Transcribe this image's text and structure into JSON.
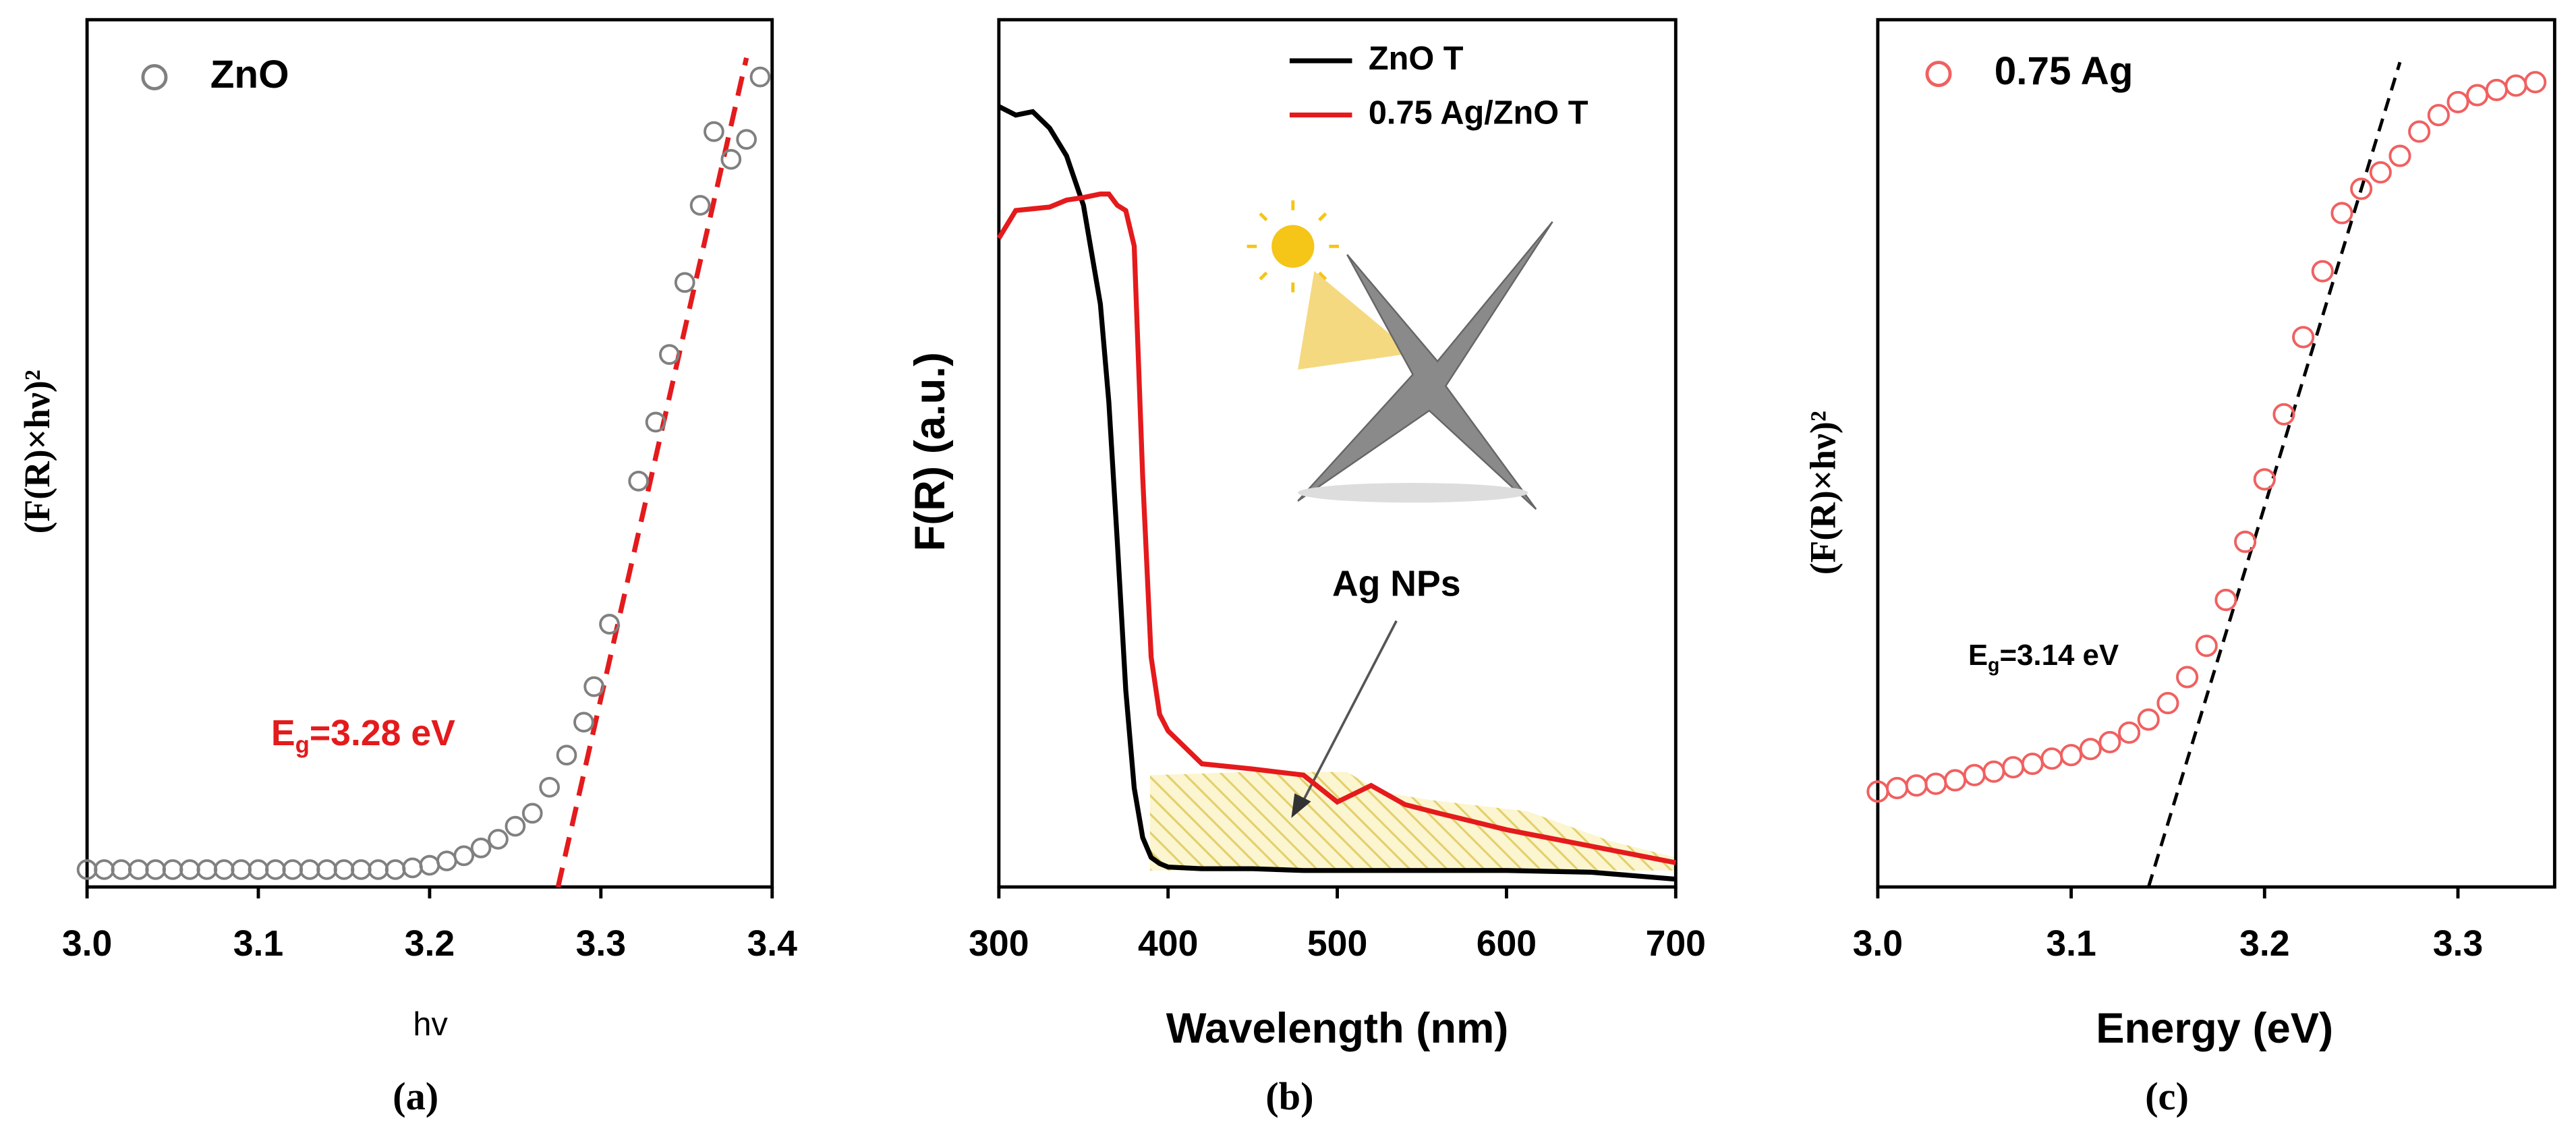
{
  "chart_data": [
    {
      "type": "scatter",
      "panel_label": "(a)",
      "x_label": "hv",
      "y_label": "(F(R)×hν)²",
      "legend": "upper left",
      "xlim": [
        3.0,
        3.4
      ],
      "xticks": [
        {
          "value": 3.0,
          "label": "3.0"
        },
        3.1,
        3.2,
        3.3,
        3.4
      ],
      "ylim": [
        0,
        1
      ],
      "series": [
        {
          "name": "ZnO",
          "color": "#808080",
          "x": [
            3.0,
            3.01,
            3.02,
            3.03,
            3.04,
            3.05,
            3.06,
            3.07,
            3.08,
            3.09,
            3.1,
            3.11,
            3.12,
            3.13,
            3.14,
            3.15,
            3.16,
            3.17,
            3.18,
            3.19,
            3.2,
            3.21,
            3.22,
            3.23,
            3.24,
            3.25,
            3.26,
            3.27,
            3.28,
            3.29,
            3.296,
            3.305,
            3.322,
            3.332,
            3.34,
            3.349,
            3.358,
            3.366,
            3.376,
            3.385,
            3.393
          ],
          "values": [
            0.02,
            0.02,
            0.02,
            0.02,
            0.02,
            0.02,
            0.02,
            0.02,
            0.02,
            0.02,
            0.02,
            0.02,
            0.02,
            0.02,
            0.02,
            0.02,
            0.02,
            0.02,
            0.02,
            0.022,
            0.025,
            0.03,
            0.036,
            0.045,
            0.055,
            0.07,
            0.085,
            0.115,
            0.152,
            0.19,
            0.231,
            0.303,
            0.468,
            0.536,
            0.614,
            0.697,
            0.786,
            0.871,
            0.839,
            0.862,
            0.934
          ]
        }
      ],
      "fit_line": {
        "color": "#e41a1c",
        "x": [
          3.275,
          3.385
        ],
        "y": [
          0,
          0.956
        ]
      },
      "annotation": {
        "main": "E",
        "sub": "g",
        "rest": "=3.28 eV",
        "color": "#e41a1c"
      }
    },
    {
      "type": "line",
      "panel_label": "(b)",
      "x_label": "Wavelength (nm)",
      "y_label": "F(R) (a.u.)",
      "legend": "upper right",
      "xlim": [
        300,
        700
      ],
      "xticks": [
        300,
        400,
        500,
        600,
        700
      ],
      "ylim": [
        0,
        1
      ],
      "x": [
        300,
        310,
        320,
        330,
        340,
        350,
        360,
        365,
        370,
        375,
        380,
        385,
        390,
        395,
        400,
        420,
        450,
        480,
        500,
        520,
        540,
        560,
        600,
        650,
        700
      ],
      "series": [
        {
          "name": "ZnO T",
          "color": "#000000",
          "values": [
            0.9,
            0.89,
            0.894,
            0.875,
            0.843,
            0.786,
            0.672,
            0.559,
            0.398,
            0.227,
            0.114,
            0.057,
            0.034,
            0.027,
            0.023,
            0.021,
            0.021,
            0.019,
            0.019,
            0.019,
            0.019,
            0.019,
            0.019,
            0.017,
            0.009
          ]
        },
        {
          "name": "0.75 Ag/ZnO T",
          "color": "#e41a1c",
          "values": [
            0.748,
            0.78,
            0.782,
            0.784,
            0.792,
            0.795,
            0.799,
            0.799,
            0.786,
            0.78,
            0.739,
            0.473,
            0.265,
            0.199,
            0.18,
            0.142,
            0.136,
            0.129,
            0.098,
            0.117,
            0.095,
            0.085,
            0.066,
            0.047,
            0.028
          ]
        }
      ],
      "annotation_text": "Ag NPs"
    },
    {
      "type": "scatter",
      "panel_label": "(c)",
      "x_label": "Energy (eV)",
      "y_label": "(F(R)×hν)²",
      "legend": "upper left",
      "xlim": [
        3.0,
        3.35
      ],
      "xticks": [
        {
          "value": 3.0,
          "label": "3.0"
        },
        3.1,
        3.2,
        3.3
      ],
      "ylim": [
        0,
        1
      ],
      "series": [
        {
          "name": "0.75 Ag",
          "color": "#f06060",
          "x": [
            3.0,
            3.01,
            3.02,
            3.03,
            3.04,
            3.05,
            3.06,
            3.07,
            3.08,
            3.09,
            3.1,
            3.11,
            3.12,
            3.13,
            3.14,
            3.15,
            3.16,
            3.17,
            3.18,
            3.19,
            3.2,
            3.21,
            3.22,
            3.23,
            3.24,
            3.25,
            3.26,
            3.27,
            3.28,
            3.29,
            3.3,
            3.31,
            3.32,
            3.33,
            3.34
          ],
          "values": [
            0.11,
            0.114,
            0.117,
            0.119,
            0.123,
            0.129,
            0.133,
            0.138,
            0.142,
            0.148,
            0.152,
            0.159,
            0.167,
            0.178,
            0.193,
            0.212,
            0.242,
            0.278,
            0.331,
            0.398,
            0.47,
            0.545,
            0.634,
            0.71,
            0.777,
            0.805,
            0.824,
            0.843,
            0.871,
            0.89,
            0.905,
            0.913,
            0.919,
            0.924,
            0.928
          ]
        }
      ],
      "fit_line": {
        "color": "#000000",
        "x": [
          3.14,
          3.27
        ],
        "y": [
          0,
          0.951
        ]
      },
      "annotation": {
        "main": "E",
        "sub": "g",
        "rest": "=3.14 eV",
        "color": "#000000"
      }
    }
  ]
}
